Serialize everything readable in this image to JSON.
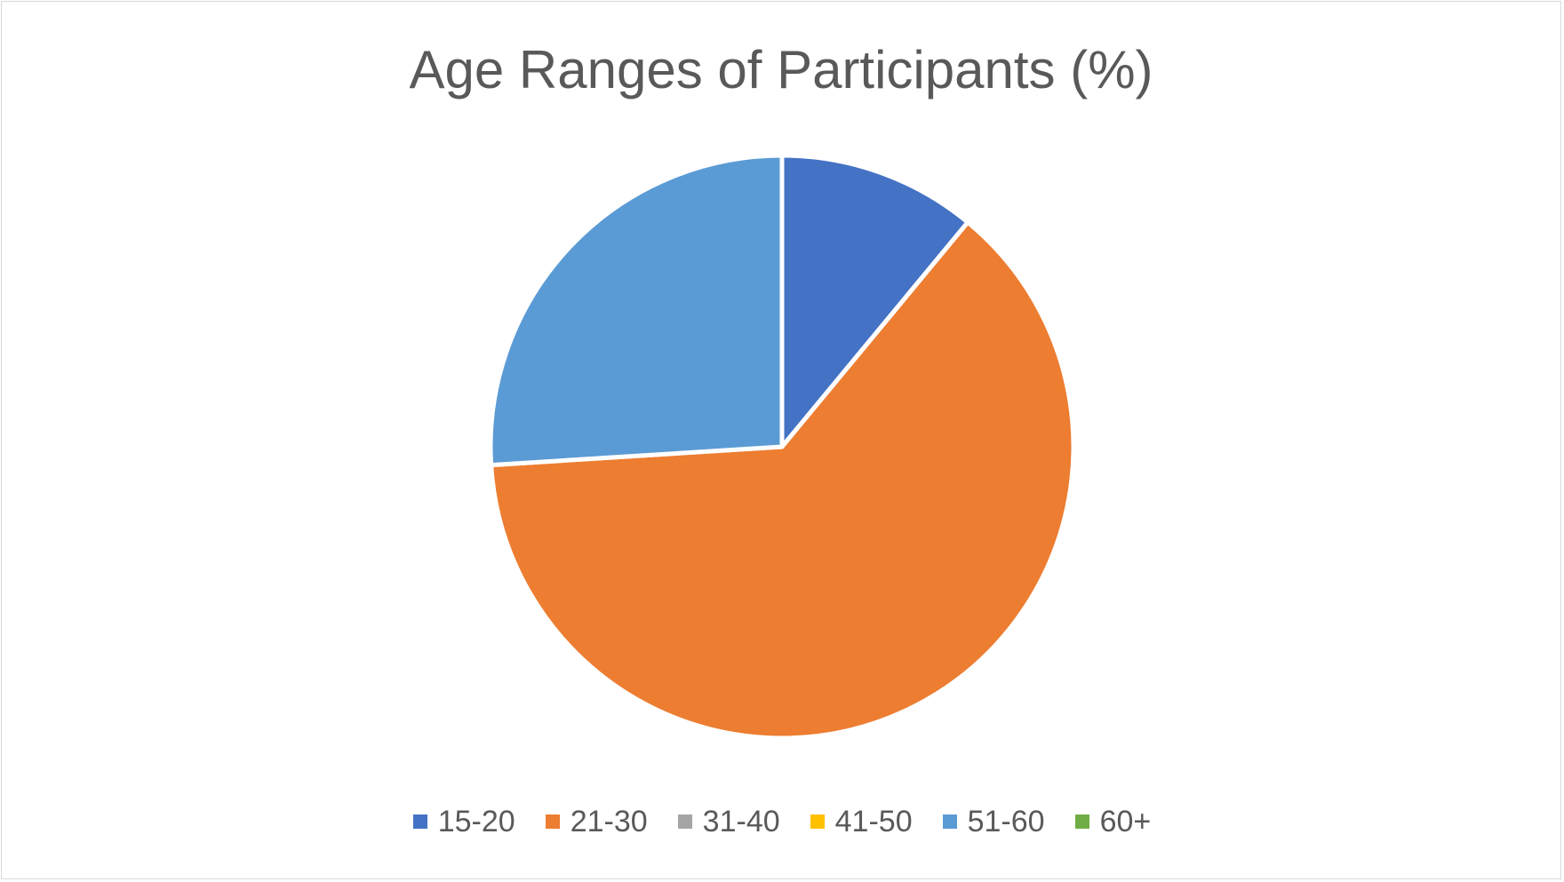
{
  "chart_data": {
    "type": "pie",
    "title": "Age Ranges of Participants (%)",
    "categories": [
      "15-20",
      "21-30",
      "31-40",
      "41-50",
      "51-60",
      "60+"
    ],
    "values": [
      11,
      63,
      0,
      0,
      26,
      0
    ],
    "colors": [
      "#4472c4",
      "#ed7d31",
      "#a5a5a5",
      "#ffc000",
      "#5b9bd5",
      "#70ad47"
    ],
    "start_angle_deg": 0,
    "direction": "clockwise",
    "legend_position": "bottom",
    "slice_border_color": "#ffffff"
  }
}
